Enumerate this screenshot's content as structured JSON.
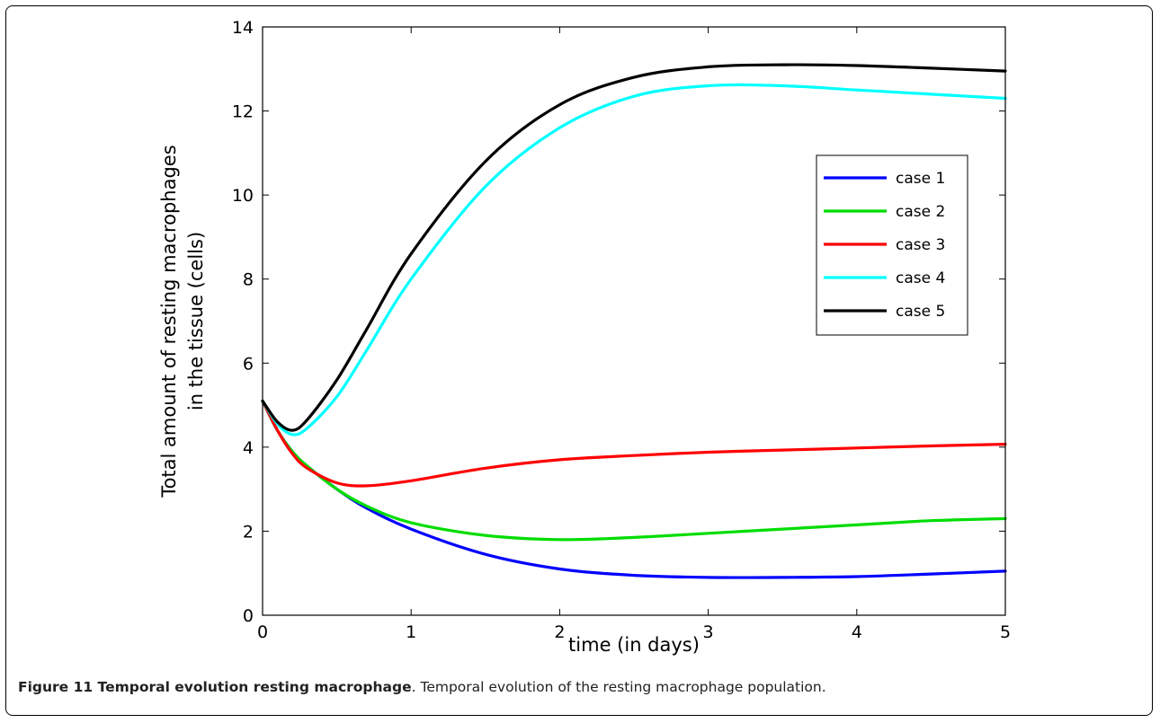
{
  "caption": {
    "title": "Figure 11 Temporal evolution resting macrophage",
    "text": ". Temporal evolution of the resting macrophage population."
  },
  "chart_data": {
    "type": "line",
    "xlabel": "time (in days)",
    "ylabel_lines": [
      "Total amount of resting macrophages",
      "in the tissue (cells)"
    ],
    "xlim": [
      0,
      5
    ],
    "ylim": [
      0,
      14
    ],
    "xticks": [
      0,
      1,
      2,
      3,
      4,
      5
    ],
    "yticks": [
      0,
      2,
      4,
      6,
      8,
      10,
      12,
      14
    ],
    "grid": false,
    "legend_position": "upper-right",
    "x": [
      0,
      0.1,
      0.2,
      0.3,
      0.5,
      0.7,
      1.0,
      1.5,
      2.0,
      2.5,
      3.0,
      3.5,
      4.0,
      4.5,
      5.0
    ],
    "series": [
      {
        "name": "case 1",
        "color": "#0000ff",
        "values": [
          5.1,
          4.4,
          3.9,
          3.55,
          3.0,
          2.55,
          2.05,
          1.45,
          1.1,
          0.95,
          0.9,
          0.9,
          0.92,
          0.98,
          1.05
        ]
      },
      {
        "name": "case 2",
        "color": "#00dd00",
        "values": [
          5.1,
          4.4,
          3.9,
          3.55,
          3.0,
          2.6,
          2.2,
          1.9,
          1.8,
          1.85,
          1.95,
          2.05,
          2.15,
          2.25,
          2.3
        ]
      },
      {
        "name": "case 3",
        "color": "#ff0000",
        "values": [
          5.1,
          4.4,
          3.85,
          3.5,
          3.15,
          3.08,
          3.2,
          3.5,
          3.7,
          3.8,
          3.88,
          3.93,
          3.98,
          4.03,
          4.07
        ]
      },
      {
        "name": "case 4",
        "color": "#00ffff",
        "values": [
          5.1,
          4.55,
          4.3,
          4.45,
          5.2,
          6.3,
          8.0,
          10.2,
          11.6,
          12.35,
          12.6,
          12.6,
          12.5,
          12.4,
          12.3
        ]
      },
      {
        "name": "case 5",
        "color": "#000000",
        "values": [
          5.1,
          4.6,
          4.4,
          4.65,
          5.6,
          6.8,
          8.6,
          10.8,
          12.15,
          12.8,
          13.05,
          13.1,
          13.08,
          13.02,
          12.95
        ]
      }
    ]
  }
}
